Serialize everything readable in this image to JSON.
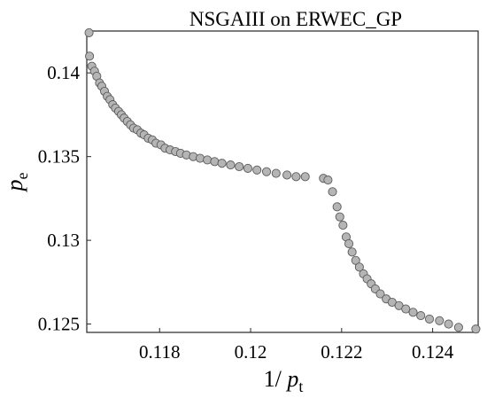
{
  "chart_data": {
    "type": "scatter",
    "title": "NSGAIII on ERWEC_GP",
    "xlabel": {
      "prefix": "1/ ",
      "var": "p",
      "sub": "t"
    },
    "ylabel": {
      "var": "p",
      "sub": "e"
    },
    "xlim": [
      0.1164,
      0.125
    ],
    "ylim": [
      0.1245,
      0.1425
    ],
    "xticks": [
      {
        "value": 0.118,
        "label": "0.118"
      },
      {
        "value": 0.12,
        "label": "0.12"
      },
      {
        "value": 0.122,
        "label": "0.122"
      },
      {
        "value": 0.124,
        "label": "0.124"
      }
    ],
    "yticks": [
      {
        "value": 0.125,
        "label": "0.125"
      },
      {
        "value": 0.13,
        "label": "0.13"
      },
      {
        "value": 0.135,
        "label": "0.135"
      },
      {
        "value": 0.14,
        "label": "0.14"
      }
    ],
    "grid": false,
    "marker_fill": "#b5b5b5",
    "marker_edge": "#5a5a5a",
    "series": [
      {
        "x": [
          0.11645,
          0.11646,
          0.11651,
          0.11657,
          0.11662,
          0.11668,
          0.11673,
          0.11679,
          0.11685,
          0.11691,
          0.11697,
          0.11703,
          0.1171,
          0.11716,
          0.11722,
          0.11729,
          0.11736,
          0.11743,
          0.11751,
          0.11759,
          0.11766,
          0.11775,
          0.11784,
          0.11792,
          0.11803,
          0.11812,
          0.11823,
          0.11835,
          0.11846,
          0.11859,
          0.11874,
          0.11889,
          0.11905,
          0.11921,
          0.11937,
          0.11956,
          0.11975,
          0.11994,
          0.12014,
          0.12035,
          0.12056,
          0.1208,
          0.121,
          0.1212,
          0.1216,
          0.1217,
          0.1218,
          0.1219,
          0.12196,
          0.12203,
          0.1221,
          0.12216,
          0.12223,
          0.12231,
          0.12239,
          0.12248,
          0.12256,
          0.12265,
          0.12274,
          0.12285,
          0.12298,
          0.12311,
          0.12326,
          0.12341,
          0.12357,
          0.12374,
          0.12393,
          0.12415,
          0.12435,
          0.12457,
          0.12495
        ],
        "y": [
          0.1424,
          0.141,
          0.1404,
          0.1401,
          0.1398,
          0.1394,
          0.1392,
          0.1389,
          0.1386,
          0.1384,
          0.1381,
          0.1379,
          0.1377,
          0.1375,
          0.1373,
          0.1371,
          0.1369,
          0.1367,
          0.1366,
          0.1364,
          0.1363,
          0.1361,
          0.136,
          0.1358,
          0.1357,
          0.1355,
          0.1354,
          0.1353,
          0.1352,
          0.1351,
          0.135,
          0.1349,
          0.1348,
          0.1347,
          0.1346,
          0.1345,
          0.1344,
          0.1343,
          0.1342,
          0.1341,
          0.134,
          0.1339,
          0.1338,
          0.1338,
          0.1337,
          0.1336,
          0.1329,
          0.132,
          0.1314,
          0.1309,
          0.1302,
          0.1298,
          0.1293,
          0.1288,
          0.1284,
          0.128,
          0.1277,
          0.1274,
          0.1271,
          0.1268,
          0.1265,
          0.1263,
          0.1261,
          0.1259,
          0.1257,
          0.1255,
          0.1253,
          0.1252,
          0.125,
          0.1248,
          0.1247
        ]
      }
    ]
  }
}
